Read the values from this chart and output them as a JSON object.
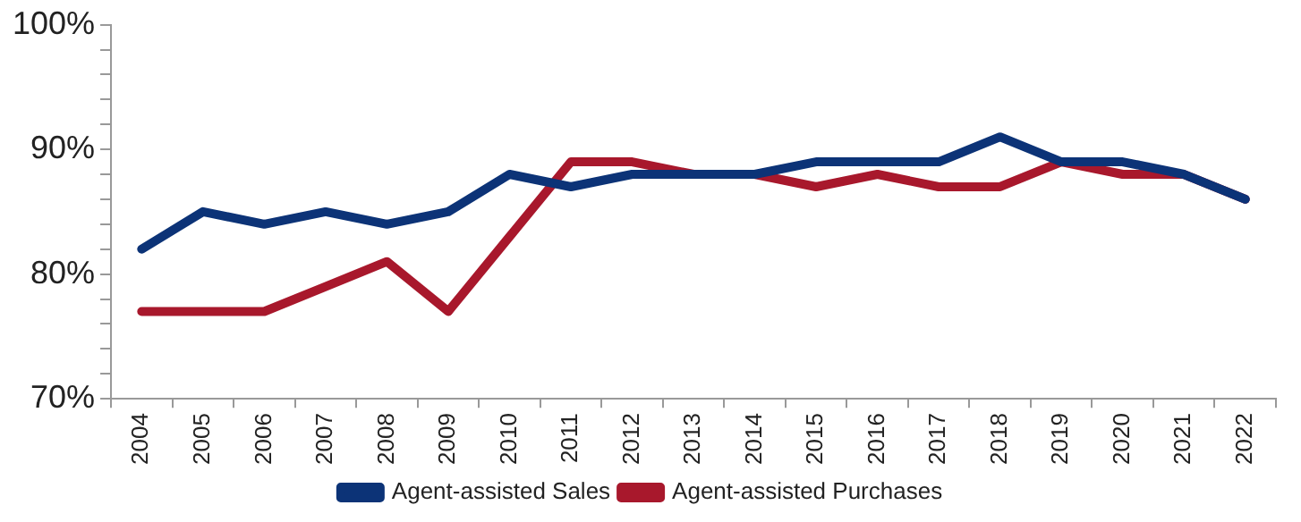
{
  "chart_data": {
    "type": "line",
    "categories": [
      "2004",
      "2005",
      "2006",
      "2007",
      "2008",
      "2009",
      "2010",
      "2011",
      "2012",
      "2013",
      "2014",
      "2015",
      "2016",
      "2017",
      "2018",
      "2019",
      "2020",
      "2021",
      "2022"
    ],
    "series": [
      {
        "name": "Agent-assisted Sales",
        "color": "#0c3377",
        "values": [
          82,
          85,
          84,
          85,
          84,
          85,
          88,
          87,
          88,
          88,
          88,
          89,
          89,
          89,
          91,
          89,
          89,
          88,
          86
        ]
      },
      {
        "name": "Agent-assisted Purchases",
        "color": "#a8182c",
        "values": [
          77,
          77,
          77,
          79,
          81,
          77,
          83,
          89,
          89,
          88,
          88,
          87,
          88,
          87,
          87,
          89,
          88,
          88,
          86
        ]
      }
    ],
    "ylim": [
      70,
      100
    ],
    "yticks": [
      {
        "value": 70,
        "label": "70%"
      },
      {
        "value": 72,
        "label": null
      },
      {
        "value": 74,
        "label": null
      },
      {
        "value": 76,
        "label": null
      },
      {
        "value": 78,
        "label": null
      },
      {
        "value": 80,
        "label": "80%"
      },
      {
        "value": 82,
        "label": null
      },
      {
        "value": 84,
        "label": null
      },
      {
        "value": 86,
        "label": null
      },
      {
        "value": 88,
        "label": null
      },
      {
        "value": 90,
        "label": "90%"
      },
      {
        "value": 92,
        "label": null
      },
      {
        "value": 94,
        "label": null
      },
      {
        "value": 96,
        "label": null
      },
      {
        "value": 98,
        "label": null
      },
      {
        "value": 100,
        "label": "100%"
      }
    ],
    "grid": false,
    "legend": "bottom",
    "marker": "none",
    "line_style": "solid"
  }
}
